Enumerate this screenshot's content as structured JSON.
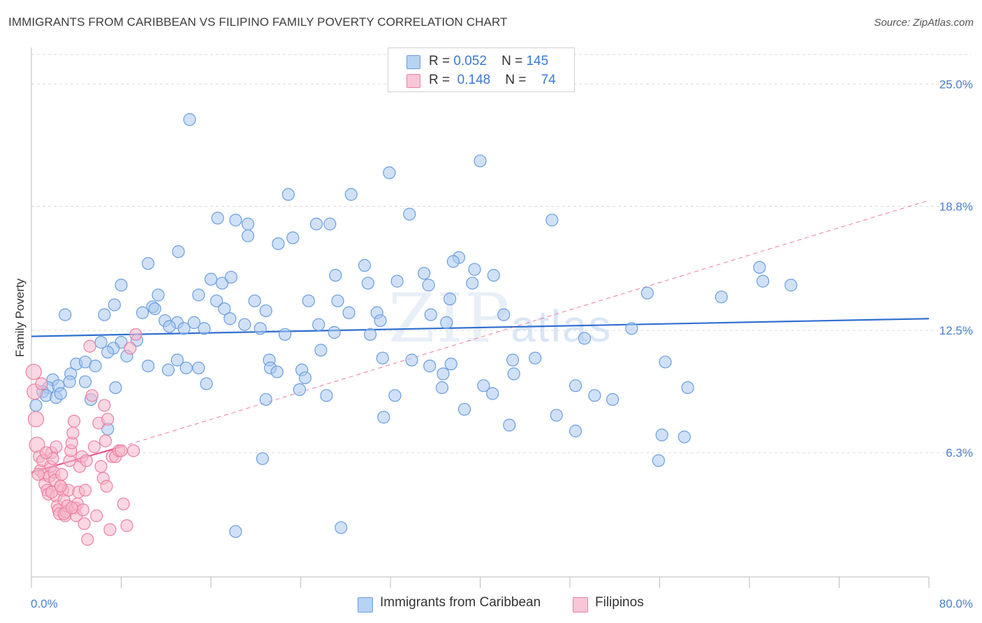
{
  "title": "IMMIGRANTS FROM CARIBBEAN VS FILIPINO FAMILY POVERTY CORRELATION CHART",
  "source": "Source: ZipAtlas.com",
  "watermark": {
    "zip": "ZIP",
    "atlas": "atlas"
  },
  "legend": {
    "rows": [
      {
        "r_label": "R =",
        "r_value": "0.052",
        "n_label": "N =",
        "n_value": "145"
      },
      {
        "r_label": "R =",
        "r_value": "0.148",
        "n_label": "N =",
        "n_value": "74"
      }
    ]
  },
  "bottom_legend": {
    "caribbean": "Immigrants from Caribbean",
    "filipinos": "Filipinos"
  },
  "colors": {
    "caribbean_fill": "#a9c8f0",
    "caribbean_stroke": "#6a9ee0",
    "caribbean_line": "#2f6fd0",
    "filipino_fill": "#f6b6ca",
    "filipino_stroke": "#ee7fa2",
    "filipino_line": "#e8588a",
    "grid": "#d9d9d9",
    "axis_text": "#4a7fcb"
  },
  "chart_data": {
    "type": "scatter",
    "title": "IMMIGRANTS FROM CARIBBEAN VS FILIPINO FAMILY POVERTY CORRELATION CHART",
    "xlabel": "",
    "ylabel": "Family Poverty",
    "xlim": [
      0,
      80
    ],
    "ylim": [
      0,
      26.5
    ],
    "x_tick_labels": [
      "0.0%",
      "80.0%"
    ],
    "y_ticks": [
      6.3,
      12.5,
      18.8,
      25.0
    ],
    "y_tick_labels": [
      "6.3%",
      "12.5%",
      "18.8%",
      "25.0%"
    ],
    "grid": true,
    "legend_position": "top-center",
    "series": [
      {
        "name": "Immigrants from Caribbean",
        "R": 0.052,
        "N": 145,
        "trend": {
          "x": [
            0,
            80
          ],
          "y": [
            12.2,
            13.1
          ]
        },
        "points": [
          [
            14.1,
            23.2
          ],
          [
            40.0,
            21.1
          ],
          [
            31.9,
            20.5
          ],
          [
            22.9,
            19.4
          ],
          [
            28.5,
            19.4
          ],
          [
            33.7,
            18.4
          ],
          [
            16.6,
            18.2
          ],
          [
            18.2,
            18.1
          ],
          [
            19.3,
            17.9
          ],
          [
            25.4,
            17.9
          ],
          [
            26.6,
            17.9
          ],
          [
            46.4,
            18.1
          ],
          [
            19.3,
            17.3
          ],
          [
            23.3,
            17.2
          ],
          [
            22.0,
            16.9
          ],
          [
            13.1,
            16.5
          ],
          [
            38.1,
            16.2
          ],
          [
            10.4,
            15.9
          ],
          [
            37.6,
            16.0
          ],
          [
            29.7,
            15.8
          ],
          [
            39.5,
            15.6
          ],
          [
            27.1,
            15.3
          ],
          [
            35.0,
            15.4
          ],
          [
            41.2,
            15.3
          ],
          [
            64.9,
            15.7
          ],
          [
            16.0,
            15.1
          ],
          [
            17.0,
            14.9
          ],
          [
            17.8,
            15.2
          ],
          [
            30.0,
            14.9
          ],
          [
            32.6,
            15.0
          ],
          [
            35.4,
            14.8
          ],
          [
            39.3,
            14.9
          ],
          [
            8.0,
            14.8
          ],
          [
            65.2,
            15.0
          ],
          [
            67.7,
            14.8
          ],
          [
            11.3,
            14.3
          ],
          [
            14.9,
            14.3
          ],
          [
            16.5,
            14.0
          ],
          [
            19.9,
            14.0
          ],
          [
            24.7,
            14.0
          ],
          [
            27.3,
            14.0
          ],
          [
            37.3,
            14.1
          ],
          [
            54.9,
            14.4
          ],
          [
            61.5,
            14.2
          ],
          [
            7.4,
            13.8
          ],
          [
            10.8,
            13.7
          ],
          [
            9.9,
            13.4
          ],
          [
            11.0,
            13.6
          ],
          [
            17.2,
            13.6
          ],
          [
            20.9,
            13.5
          ],
          [
            28.3,
            13.4
          ],
          [
            30.8,
            13.4
          ],
          [
            35.6,
            13.3
          ],
          [
            42.1,
            13.3
          ],
          [
            3.0,
            13.3
          ],
          [
            6.5,
            13.3
          ],
          [
            11.9,
            13.0
          ],
          [
            13.0,
            12.9
          ],
          [
            14.5,
            12.9
          ],
          [
            17.7,
            13.1
          ],
          [
            19.0,
            12.8
          ],
          [
            31.1,
            13.0
          ],
          [
            37.0,
            12.9
          ],
          [
            12.3,
            12.7
          ],
          [
            13.6,
            12.6
          ],
          [
            15.4,
            12.6
          ],
          [
            20.4,
            12.6
          ],
          [
            25.6,
            12.8
          ],
          [
            53.5,
            12.6
          ],
          [
            22.6,
            12.3
          ],
          [
            27.0,
            12.4
          ],
          [
            30.2,
            12.3
          ],
          [
            49.3,
            12.1
          ],
          [
            9.4,
            12.0
          ],
          [
            8.0,
            11.9
          ],
          [
            6.2,
            11.9
          ],
          [
            7.3,
            11.6
          ],
          [
            25.8,
            11.5
          ],
          [
            6.8,
            11.4
          ],
          [
            8.5,
            11.2
          ],
          [
            13.0,
            11.0
          ],
          [
            21.2,
            11.0
          ],
          [
            31.3,
            11.1
          ],
          [
            33.9,
            11.0
          ],
          [
            42.9,
            11.0
          ],
          [
            44.9,
            11.1
          ],
          [
            56.5,
            10.9
          ],
          [
            4.0,
            10.8
          ],
          [
            4.8,
            10.9
          ],
          [
            5.7,
            10.7
          ],
          [
            10.4,
            10.7
          ],
          [
            12.2,
            10.5
          ],
          [
            13.8,
            10.6
          ],
          [
            14.9,
            10.6
          ],
          [
            21.3,
            10.6
          ],
          [
            21.9,
            10.4
          ],
          [
            24.1,
            10.5
          ],
          [
            35.5,
            10.7
          ],
          [
            36.7,
            10.3
          ],
          [
            37.4,
            10.8
          ],
          [
            43.0,
            10.3
          ],
          [
            3.5,
            10.3
          ],
          [
            1.9,
            10.0
          ],
          [
            3.4,
            9.9
          ],
          [
            4.8,
            9.9
          ],
          [
            15.6,
            9.8
          ],
          [
            24.4,
            10.1
          ],
          [
            40.3,
            9.7
          ],
          [
            48.5,
            9.7
          ],
          [
            1.5,
            9.6
          ],
          [
            2.4,
            9.7
          ],
          [
            7.5,
            9.6
          ],
          [
            23.9,
            9.5
          ],
          [
            36.6,
            9.6
          ],
          [
            58.5,
            9.6
          ],
          [
            1.0,
            9.4
          ],
          [
            1.3,
            9.2
          ],
          [
            2.2,
            9.1
          ],
          [
            2.6,
            9.3
          ],
          [
            20.9,
            9.0
          ],
          [
            26.3,
            9.2
          ],
          [
            32.4,
            9.2
          ],
          [
            41.1,
            9.3
          ],
          [
            50.2,
            9.2
          ],
          [
            51.8,
            9.0
          ],
          [
            5.3,
            9.0
          ],
          [
            0.4,
            8.7
          ],
          [
            38.6,
            8.5
          ],
          [
            46.8,
            8.2
          ],
          [
            31.4,
            8.1
          ],
          [
            42.6,
            7.7
          ],
          [
            6.8,
            7.5
          ],
          [
            48.5,
            7.4
          ],
          [
            56.2,
            7.2
          ],
          [
            58.2,
            7.1
          ],
          [
            20.6,
            6.0
          ],
          [
            55.9,
            5.9
          ],
          [
            18.2,
            2.3
          ],
          [
            27.6,
            2.5
          ]
        ]
      },
      {
        "name": "Filipinos",
        "R": 0.148,
        "N": 74,
        "trend": {
          "x": [
            0,
            8
          ],
          "y": [
            5.3,
            6.6
          ],
          "dashed_extension": {
            "x": [
              8,
              80
            ],
            "y": [
              6.6,
              19.1
            ]
          }
        },
        "points": [
          [
            0.2,
            10.4
          ],
          [
            0.3,
            9.4
          ],
          [
            0.4,
            8.0
          ],
          [
            0.5,
            6.7
          ],
          [
            0.7,
            6.1
          ],
          [
            0.8,
            5.4
          ],
          [
            1.0,
            5.9
          ],
          [
            1.1,
            5.2
          ],
          [
            1.2,
            4.7
          ],
          [
            1.4,
            4.4
          ],
          [
            1.5,
            4.2
          ],
          [
            1.6,
            5.1
          ],
          [
            1.7,
            5.6
          ],
          [
            1.8,
            6.3
          ],
          [
            1.9,
            6.0
          ],
          [
            2.0,
            5.3
          ],
          [
            2.1,
            4.9
          ],
          [
            2.2,
            4.1
          ],
          [
            2.3,
            3.6
          ],
          [
            2.4,
            3.4
          ],
          [
            2.5,
            3.2
          ],
          [
            2.6,
            4.6
          ],
          [
            2.7,
            5.2
          ],
          [
            2.8,
            4.4
          ],
          [
            2.9,
            3.9
          ],
          [
            3.0,
            3.1
          ],
          [
            3.1,
            3.3
          ],
          [
            3.2,
            3.6
          ],
          [
            3.3,
            4.4
          ],
          [
            3.4,
            5.9
          ],
          [
            3.5,
            6.4
          ],
          [
            3.6,
            6.8
          ],
          [
            3.7,
            7.3
          ],
          [
            3.8,
            7.9
          ],
          [
            3.9,
            3.5
          ],
          [
            4.0,
            3.1
          ],
          [
            4.1,
            3.7
          ],
          [
            4.2,
            4.3
          ],
          [
            4.3,
            5.6
          ],
          [
            4.5,
            6.1
          ],
          [
            4.6,
            3.4
          ],
          [
            4.7,
            2.7
          ],
          [
            4.8,
            4.4
          ],
          [
            5.0,
            1.9
          ],
          [
            5.2,
            11.7
          ],
          [
            5.4,
            9.2
          ],
          [
            5.6,
            6.6
          ],
          [
            5.8,
            3.1
          ],
          [
            6.0,
            7.8
          ],
          [
            6.2,
            5.6
          ],
          [
            6.4,
            5.0
          ],
          [
            6.5,
            8.7
          ],
          [
            6.6,
            6.9
          ],
          [
            6.8,
            8.0
          ],
          [
            7.0,
            2.4
          ],
          [
            7.2,
            6.1
          ],
          [
            7.5,
            6.1
          ],
          [
            7.8,
            6.4
          ],
          [
            8.0,
            6.4
          ],
          [
            8.2,
            3.7
          ],
          [
            8.5,
            2.6
          ],
          [
            8.8,
            11.6
          ],
          [
            9.1,
            6.4
          ],
          [
            9.3,
            12.3
          ],
          [
            0.9,
            9.8
          ],
          [
            1.3,
            6.3
          ],
          [
            0.6,
            5.2
          ],
          [
            2.2,
            6.6
          ],
          [
            2.9,
            3.2
          ],
          [
            3.6,
            3.5
          ],
          [
            1.8,
            4.3
          ],
          [
            2.6,
            4.6
          ],
          [
            4.9,
            5.9
          ],
          [
            6.7,
            4.6
          ]
        ]
      }
    ]
  }
}
